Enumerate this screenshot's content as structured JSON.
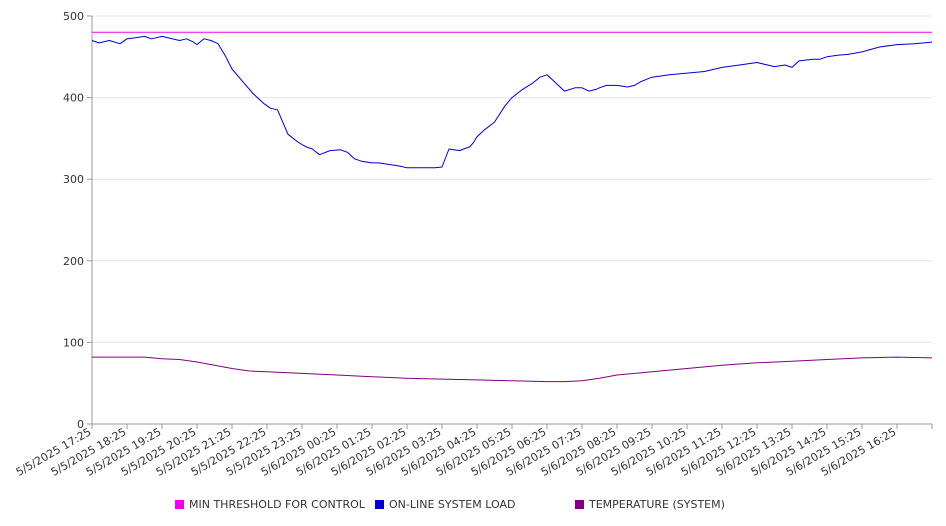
{
  "chart_data": {
    "type": "line",
    "title": "",
    "xlabel": "",
    "ylabel": "",
    "ylim": [
      0,
      500
    ],
    "yticks": [
      0,
      100,
      200,
      300,
      400,
      500
    ],
    "grid": true,
    "legend_position": "bottom",
    "categories": [
      "5/5/2025 17:25",
      "5/5/2025 18:25",
      "5/5/2025 19:25",
      "5/5/2025 20:25",
      "5/5/2025 21:25",
      "5/5/2025 22:25",
      "5/5/2025 23:25",
      "5/6/2025 00:25",
      "5/6/2025 01:25",
      "5/6/2025 02:25",
      "5/6/2025 03:25",
      "5/6/2025 04:25",
      "5/6/2025 05:25",
      "5/6/2025 06:25",
      "5/6/2025 07:25",
      "5/6/2025 08:25",
      "5/6/2025 09:25",
      "5/6/2025 10:25",
      "5/6/2025 11:25",
      "5/6/2025 12:25",
      "5/6/2025 13:25",
      "5/6/2025 14:25",
      "5/6/2025 15:25",
      "5/6/2025 16:25"
    ],
    "x_end": "5/6/2025 17:25",
    "series": [
      {
        "name": "MIN THRESHOLD FOR CONTROL",
        "color": "#ee00ee",
        "x": [
          0,
          24
        ],
        "values": [
          480,
          480
        ]
      },
      {
        "name": "ON-LINE SYSTEM LOAD",
        "color": "#0000cc",
        "x": [
          0,
          0.2,
          0.5,
          0.8,
          1.0,
          1.2,
          1.5,
          1.7,
          2.0,
          2.2,
          2.5,
          2.7,
          2.9,
          3.0,
          3.2,
          3.4,
          3.6,
          3.8,
          4.0,
          4.3,
          4.6,
          4.9,
          5.1,
          5.3,
          5.6,
          5.9,
          6.1,
          6.3,
          6.35,
          6.5,
          6.8,
          7.1,
          7.3,
          7.5,
          7.7,
          8.0,
          8.2,
          8.5,
          8.8,
          9.0,
          9.2,
          9.5,
          9.8,
          10.0,
          10.2,
          10.5,
          10.8,
          10.9,
          11.0,
          11.2,
          11.5,
          11.8,
          12.0,
          12.3,
          12.6,
          12.8,
          13.0,
          13.2,
          13.5,
          13.8,
          14.0,
          14.2,
          14.4,
          14.5,
          14.7,
          15.0,
          15.3,
          15.5,
          15.7,
          16.0,
          16.5,
          17.0,
          17.5,
          18.0,
          18.5,
          19.0,
          19.3,
          19.5,
          19.8,
          20.0,
          20.2,
          20.6,
          20.8,
          21.0,
          21.3,
          21.6,
          22.0,
          22.5,
          23.0,
          23.5,
          24.0
        ],
        "values": [
          470,
          467,
          470,
          466,
          472,
          473,
          475,
          472,
          475,
          473,
          470,
          472,
          468,
          465,
          472,
          470,
          466,
          452,
          435,
          420,
          405,
          393,
          387,
          385,
          355,
          345,
          340,
          337,
          335,
          330,
          335,
          336,
          333,
          325,
          322,
          320,
          320,
          318,
          316,
          314,
          314,
          314,
          314,
          315,
          337,
          335,
          340,
          345,
          352,
          360,
          370,
          390,
          400,
          410,
          418,
          425,
          428,
          420,
          408,
          412,
          412,
          408,
          410,
          412,
          415,
          415,
          413,
          415,
          420,
          425,
          428,
          430,
          432,
          437,
          440,
          443,
          440,
          438,
          440,
          437,
          445,
          447,
          447,
          450,
          452,
          453,
          456,
          462,
          465,
          466,
          468
        ]
      },
      {
        "name": "TEMPERATURE (SYSTEM)",
        "color": "#800080",
        "x": [
          0,
          0.5,
          1.0,
          1.5,
          2.0,
          2.5,
          3.0,
          3.5,
          4.0,
          4.5,
          5.0,
          6.0,
          7.0,
          8.0,
          9.0,
          10.0,
          11.0,
          12.0,
          13.0,
          13.5,
          14.0,
          14.5,
          15.0,
          16.0,
          17.0,
          18.0,
          19.0,
          20.0,
          21.0,
          22.0,
          23.0,
          24.0
        ],
        "values": [
          82,
          82,
          82,
          82,
          80,
          79,
          76,
          72,
          68,
          65,
          64,
          62,
          60,
          58,
          56,
          55,
          54,
          53,
          52,
          52,
          53,
          56,
          60,
          64,
          68,
          72,
          75,
          77,
          79,
          81,
          82,
          81
        ]
      }
    ]
  }
}
